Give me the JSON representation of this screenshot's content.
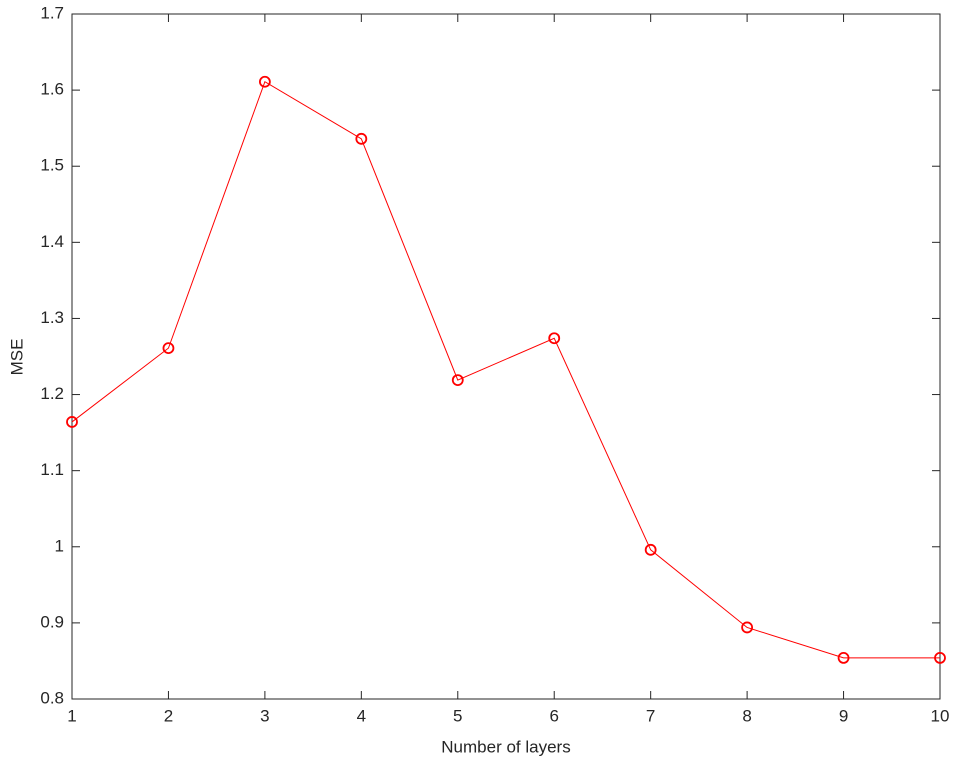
{
  "chart_data": {
    "type": "line",
    "x_label": "Number of layers",
    "y_label": "MSE",
    "x": [
      1,
      2,
      3,
      4,
      5,
      6,
      7,
      8,
      9,
      10
    ],
    "series": [
      {
        "color": "#ff0000",
        "values": [
          1.164,
          1.261,
          1.611,
          1.536,
          1.219,
          1.274,
          0.996,
          0.894,
          0.854,
          0.854
        ]
      }
    ],
    "xlim": [
      1,
      10
    ],
    "xticks": [
      1,
      2,
      3,
      4,
      5,
      6,
      7,
      8,
      9,
      10
    ],
    "ylim": [
      0.8,
      1.7
    ],
    "yticks": [
      0.8,
      0.9,
      1,
      1.1,
      1.2,
      1.3,
      1.4,
      1.5,
      1.6,
      1.7
    ],
    "grid": false,
    "box": true
  }
}
